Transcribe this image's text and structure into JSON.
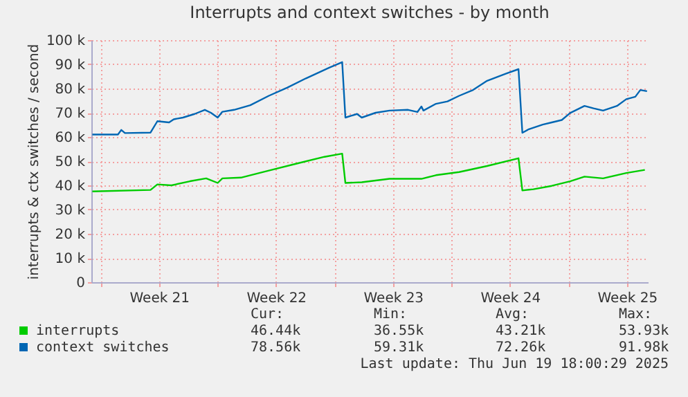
{
  "chart_data": {
    "type": "line",
    "title": "Interrupts and context switches - by month",
    "ylabel": "interrupts & ctx switches / second",
    "xlim": [
      "2025-05-17T10:48",
      "2025-06-19T18:00"
    ],
    "xticks": [
      {
        "value": "2025-05-18T00:00",
        "label": null
      },
      {
        "value": "2025-05-21T12:00",
        "label": "Week 21"
      },
      {
        "value": "2025-05-25T00:00",
        "label": null
      },
      {
        "value": "2025-05-28T12:00",
        "label": "Week 22"
      },
      {
        "value": "2025-06-01T00:00",
        "label": null
      },
      {
        "value": "2025-06-04T12:00",
        "label": "Week 23"
      },
      {
        "value": "2025-06-08T00:00",
        "label": null
      },
      {
        "value": "2025-06-11T12:00",
        "label": "Week 24"
      },
      {
        "value": "2025-06-15T00:00",
        "label": null
      },
      {
        "value": "2025-06-18T12:00",
        "label": "Week 25"
      }
    ],
    "ylim": [
      0,
      100000
    ],
    "yticks": [
      {
        "value": 0,
        "label": "0"
      },
      {
        "value": 10000,
        "label": "10 k"
      },
      {
        "value": 20000,
        "label": "20 k"
      },
      {
        "value": 30000,
        "label": "30 k"
      },
      {
        "value": 40000,
        "label": "40 k"
      },
      {
        "value": 50000,
        "label": "50 k"
      },
      {
        "value": 60000,
        "label": "60 k"
      },
      {
        "value": 70000,
        "label": "70 k"
      },
      {
        "value": 80000,
        "label": "80 k"
      },
      {
        "value": 90000,
        "label": "90 k"
      },
      {
        "value": 100000,
        "label": "100 k"
      }
    ],
    "grid": true,
    "legend": "bottom",
    "line_style": "solid",
    "marker": "none",
    "series": [
      {
        "name": "interrupts",
        "color": "#00cc00",
        "x": [
          "2025-05-17T12:14",
          "2025-05-20T23:46",
          "2025-05-21T09:36",
          "2025-05-22T05:46",
          "2025-05-23T08:24",
          "2025-05-24T07:41",
          "2025-05-25T00:14",
          "2025-05-25T06:58",
          "2025-05-26T09:36",
          "2025-05-28T01:41",
          "2025-05-29T17:46",
          "2025-05-31T09:36",
          "2025-06-01T11:02",
          "2025-06-01T15:36",
          "2025-06-02T15:07",
          "2025-06-04T06:58",
          "2025-06-05T09:36",
          "2025-06-06T04:48",
          "2025-06-07T01:41",
          "2025-06-08T11:02",
          "2025-06-10T03:07",
          "2025-06-12T00:14",
          "2025-06-12T05:46",
          "2025-06-12T21:36",
          "2025-06-14T00:00",
          "2025-06-15T02:24",
          "2025-06-15T23:02",
          "2025-06-17T01:41",
          "2025-06-18T11:02",
          "2025-06-19T13:41"
        ],
        "values": [
          37500,
          38100,
          40400,
          40000,
          41700,
          42900,
          41000,
          42900,
          43200,
          46100,
          49000,
          51800,
          53100,
          41000,
          41300,
          42700,
          42700,
          42700,
          44200,
          45500,
          48000,
          51200,
          37900,
          38400,
          39800,
          41700,
          43600,
          42900,
          45100,
          46400
        ]
      },
      {
        "name": "context switches",
        "color": "#0066b3",
        "x": [
          "2025-05-17T12:14",
          "2025-05-19T00:58",
          "2025-05-19T05:46",
          "2025-05-19T11:02",
          "2025-05-20T23:46",
          "2025-05-21T09:36",
          "2025-05-22T02:24",
          "2025-05-22T09:07",
          "2025-05-22T22:19",
          "2025-05-23T15:07",
          "2025-05-24T05:46",
          "2025-05-24T14:24",
          "2025-05-25T00:14",
          "2025-05-25T06:58",
          "2025-05-25T23:46",
          "2025-05-26T23:02",
          "2025-05-28T01:41",
          "2025-05-29T04:19",
          "2025-05-30T06:58",
          "2025-05-31T16:19",
          "2025-06-01T11:02",
          "2025-06-01T15:36",
          "2025-06-02T08:24",
          "2025-06-02T15:07",
          "2025-06-03T11:02",
          "2025-06-04T06:58",
          "2025-06-05T09:36",
          "2025-06-05T23:02",
          "2025-06-06T04:48",
          "2025-06-06T07:41",
          "2025-06-07T01:41",
          "2025-06-07T18:14",
          "2025-06-08T11:02",
          "2025-06-09T06:58",
          "2025-06-10T03:07",
          "2025-06-11T05:46",
          "2025-06-12T00:14",
          "2025-06-12T05:46",
          "2025-06-12T15:07",
          "2025-06-13T11:02",
          "2025-06-14T00:00",
          "2025-06-14T14:24",
          "2025-06-15T02:24",
          "2025-06-15T23:02",
          "2025-06-16T12:00",
          "2025-06-17T01:41",
          "2025-06-17T21:36",
          "2025-06-18T11:02",
          "2025-06-19T00:00",
          "2025-06-19T07:12",
          "2025-06-19T16:48"
        ],
        "values": [
          61000,
          61000,
          62900,
          61600,
          61800,
          66500,
          66000,
          67300,
          68000,
          69500,
          71200,
          70000,
          68000,
          70400,
          71200,
          73100,
          77000,
          80400,
          84200,
          88600,
          90900,
          68000,
          69500,
          68000,
          70000,
          70900,
          71200,
          70300,
          72600,
          70900,
          73700,
          74700,
          77000,
          79400,
          83200,
          86100,
          88000,
          61700,
          63200,
          65100,
          66000,
          67000,
          69900,
          72800,
          71800,
          70900,
          72800,
          75600,
          76600,
          79400,
          78900
        ]
      }
    ],
    "annotations": [
      "Cur:",
      "Min:",
      "Avg:",
      "Max:",
      "46.44k",
      "36.55k",
      "43.21k",
      "53.93k",
      "78.56k",
      "59.31k",
      "72.26k",
      "91.98k",
      "Last update: Thu Jun 19 18:00:29 2025"
    ]
  }
}
